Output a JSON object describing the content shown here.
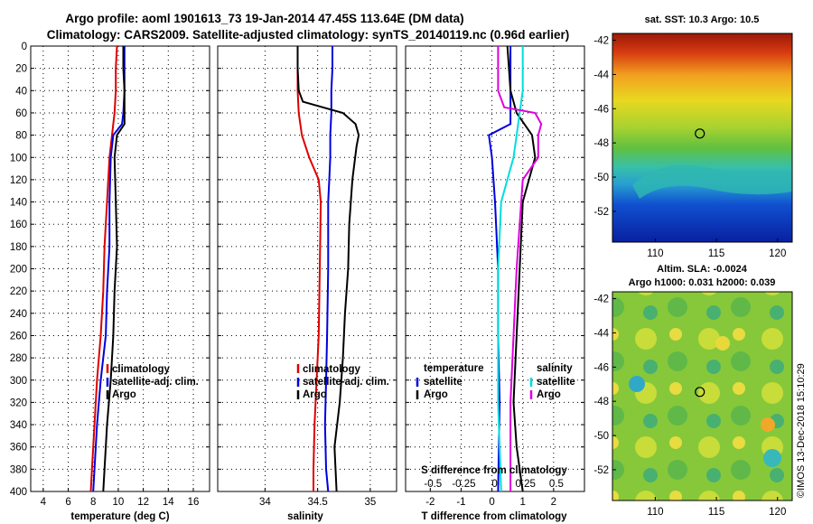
{
  "title": {
    "line1": "Argo profile: aoml 1901613_73 19-Jan-2014 47.45S 113.64E (DM data)",
    "line2": "Climatology: CARS2009. Satellite-adjusted climatology: synTS_20140119.nc (0.96d earlier)"
  },
  "colors": {
    "climatology": "#dd0000",
    "satellite": "#0000dd",
    "argo": "#000000",
    "s_clim": "#dd00dd",
    "s_sat": "#00dddd"
  },
  "chart_data": [
    {
      "type": "line",
      "xlabel": "temperature (deg C)",
      "ylabel": "depth",
      "xlim": [
        3,
        17.3
      ],
      "ylim": [
        0,
        400
      ],
      "xticks": [
        4,
        6,
        8,
        10,
        12,
        14,
        16
      ],
      "yticks": [
        0,
        20,
        40,
        60,
        80,
        100,
        120,
        140,
        160,
        180,
        200,
        220,
        240,
        260,
        280,
        300,
        320,
        340,
        360,
        380,
        400
      ],
      "legend": [
        "climatology",
        "satellite-adj. clim.",
        "Argo"
      ],
      "series": [
        {
          "name": "climatology",
          "depth": [
            0,
            20,
            40,
            60,
            80,
            100,
            140,
            180,
            220,
            260,
            300,
            340,
            380,
            400
          ],
          "values": [
            9.9,
            9.8,
            9.8,
            9.7,
            9.5,
            9.3,
            9.1,
            8.9,
            8.8,
            8.6,
            8.3,
            8.1,
            7.9,
            7.8
          ]
        },
        {
          "name": "satellite-adj. clim.",
          "depth": [
            0,
            20,
            40,
            60,
            70,
            80,
            100,
            140,
            180,
            220,
            260,
            300,
            340,
            380,
            400
          ],
          "values": [
            10.5,
            10.5,
            10.5,
            10.4,
            10.3,
            9.6,
            9.4,
            9.3,
            9.3,
            9.1,
            9.0,
            8.6,
            8.3,
            8.1,
            8.0
          ]
        },
        {
          "name": "Argo",
          "depth": [
            0,
            20,
            40,
            60,
            70,
            80,
            100,
            140,
            180,
            220,
            260,
            300,
            340,
            380,
            400
          ],
          "values": [
            10.4,
            10.4,
            10.5,
            10.5,
            10.5,
            9.9,
            9.7,
            9.8,
            9.9,
            9.7,
            9.6,
            9.4,
            9.1,
            8.9,
            8.8
          ]
        }
      ]
    },
    {
      "type": "line",
      "xlabel": "salinity",
      "ylabel": "depth",
      "xlim": [
        33.55,
        35.25
      ],
      "ylim": [
        0,
        400
      ],
      "xticks": [
        34,
        34.5,
        35
      ],
      "xticklabels": [
        "34",
        "34.5",
        "35"
      ],
      "legend": [
        "climatology",
        "satellite-adj. clim.",
        "Argo"
      ],
      "series": [
        {
          "name": "climatology",
          "depth": [
            0,
            20,
            40,
            60,
            80,
            100,
            120,
            140,
            200,
            260,
            300,
            340,
            380,
            400
          ],
          "values": [
            34.31,
            34.31,
            34.31,
            34.32,
            34.35,
            34.42,
            34.51,
            34.53,
            34.52,
            34.51,
            34.49,
            34.47,
            34.46,
            34.46
          ]
        },
        {
          "name": "satellite-adj. clim.",
          "depth": [
            0,
            20,
            40,
            60,
            80,
            100,
            120,
            140,
            200,
            260,
            300,
            340,
            380,
            400
          ],
          "values": [
            34.64,
            34.64,
            34.63,
            34.63,
            34.62,
            34.62,
            34.61,
            34.6,
            34.6,
            34.59,
            34.58,
            34.57,
            34.58,
            34.6
          ]
        },
        {
          "name": "Argo",
          "depth": [
            0,
            20,
            40,
            50,
            60,
            70,
            80,
            90,
            120,
            160,
            200,
            240,
            280,
            320,
            360,
            400
          ],
          "values": [
            34.31,
            34.31,
            34.32,
            34.36,
            34.74,
            34.86,
            34.89,
            34.87,
            34.83,
            34.8,
            34.79,
            34.76,
            34.74,
            34.71,
            34.66,
            34.68
          ]
        }
      ]
    },
    {
      "type": "line",
      "xlabel": "T difference from climatology",
      "top_xlabel": "S difference from climatology",
      "ylabel": "depth",
      "xlim": [
        -2.8,
        3.0
      ],
      "ylim": [
        0,
        400
      ],
      "xticks": [
        -2,
        -1,
        0,
        1,
        2
      ],
      "top_xticks": [
        "-0.5",
        "-0.25",
        "0",
        "0.25",
        "0.5"
      ],
      "legend_left_title": "temperature",
      "legend_left": [
        "satellite",
        "Argo"
      ],
      "legend_right_title": "salinity",
      "legend_right": [
        "satellite",
        "Argo"
      ],
      "series": [
        {
          "name": "T satellite",
          "depth": [
            0,
            40,
            70,
            80,
            100,
            140,
            200,
            260,
            320,
            400
          ],
          "values": [
            0.6,
            0.6,
            0.6,
            -0.1,
            0.0,
            0.1,
            0.2,
            0.2,
            0.25,
            0.2
          ]
        },
        {
          "name": "T Argo",
          "depth": [
            0,
            40,
            60,
            80,
            100,
            140,
            200,
            260,
            320,
            360,
            400
          ],
          "values": [
            0.5,
            0.6,
            0.8,
            1.3,
            1.4,
            1.0,
            0.9,
            0.8,
            0.7,
            0.8,
            1.0
          ]
        },
        {
          "name": "S satellite",
          "depth": [
            0,
            40,
            60,
            80,
            100,
            140,
            200,
            260,
            320,
            400
          ],
          "values": [
            1.0,
            1.0,
            0.9,
            0.8,
            0.7,
            0.3,
            0.2,
            0.2,
            0.2,
            0.3
          ]
        },
        {
          "name": "S Argo",
          "depth": [
            0,
            20,
            40,
            55,
            60,
            70,
            80,
            100,
            120,
            160,
            200,
            260,
            320,
            360,
            400
          ],
          "values": [
            0.2,
            0.2,
            0.2,
            0.4,
            1.4,
            1.6,
            1.5,
            1.5,
            1.0,
            0.9,
            0.8,
            0.7,
            0.6,
            0.6,
            0.6
          ]
        }
      ]
    },
    {
      "type": "heatmap",
      "title": "sat. SST: 10.3 Argo: 10.5",
      "xticks": [
        110,
        115,
        120
      ],
      "yticks": [
        -42,
        -44,
        -46,
        -48,
        -50,
        -52
      ],
      "xlim": [
        106.5,
        121.2
      ],
      "ylim": [
        -53.8,
        -41.6
      ],
      "marker": {
        "lon": 113.64,
        "lat": -47.45
      }
    },
    {
      "type": "heatmap",
      "title_line1": "Altim. SLA: -0.0024",
      "title_line2": "Argo h1000: 0.031 h2000: 0.039",
      "xticks": [
        110,
        115,
        120
      ],
      "yticks": [
        -42,
        -44,
        -46,
        -48,
        -50,
        -52
      ],
      "xlim": [
        106.5,
        121.2
      ],
      "ylim": [
        -53.8,
        -41.6
      ],
      "marker": {
        "lon": 113.64,
        "lat": -47.45
      }
    }
  ],
  "watermark": "©IMOS 13-Dec-2018 15:10:29"
}
